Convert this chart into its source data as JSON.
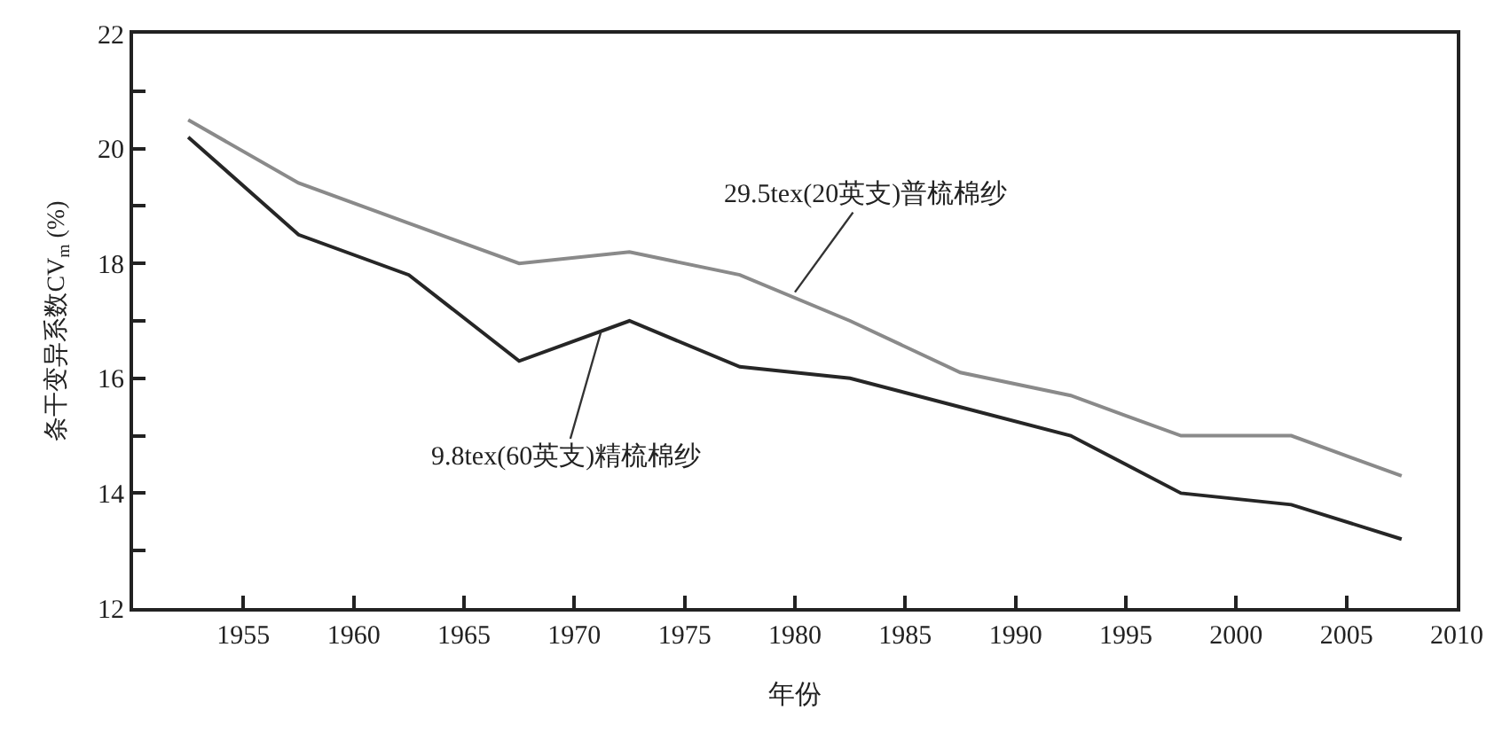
{
  "chart_data": {
    "type": "line",
    "xlabel": "年份",
    "ylabel": "条干变异系数CV$_{m}$ (%)",
    "x": [
      1952.5,
      1957.5,
      1962.5,
      1967.5,
      1972.5,
      1977.5,
      1982.5,
      1987.5,
      1992.5,
      1997.5,
      2002.5,
      2007.5
    ],
    "series": [
      {
        "color": "#8a8a8a",
        "values": [
          20.5,
          19.4,
          18.7,
          18.0,
          18.2,
          17.8,
          17.0,
          16.1,
          15.7,
          15.0,
          15.0,
          14.3
        ]
      },
      {
        "color": "#262626",
        "values": [
          20.2,
          18.5,
          17.8,
          16.3,
          17.0,
          16.2,
          16.0,
          15.5,
          15.0,
          14.0,
          13.8,
          13.2
        ]
      }
    ],
    "annotations": [
      {
        "text": "29.5tex(20英支)普梳棉纱",
        "x": 1980,
        "y": 17.5
      },
      {
        "text": "9.8tex(60英支)精梳棉纱",
        "x": 1971.2,
        "y": 16.8
      }
    ],
    "xlim": [
      1950,
      2010
    ],
    "xticks": [
      1955,
      1960,
      1965,
      1970,
      1975,
      1980,
      1985,
      1990,
      1995,
      2000,
      2005,
      2010
    ],
    "ylim": [
      12,
      22
    ],
    "yticks": [
      12,
      {
        "value": 13,
        "label": null
      },
      14,
      {
        "value": 15,
        "label": null
      },
      16,
      {
        "value": 17,
        "label": null
      },
      18,
      {
        "value": 19,
        "label": null
      },
      20,
      {
        "value": 21,
        "label": null
      },
      22
    ],
    "line_style": "solid"
  }
}
